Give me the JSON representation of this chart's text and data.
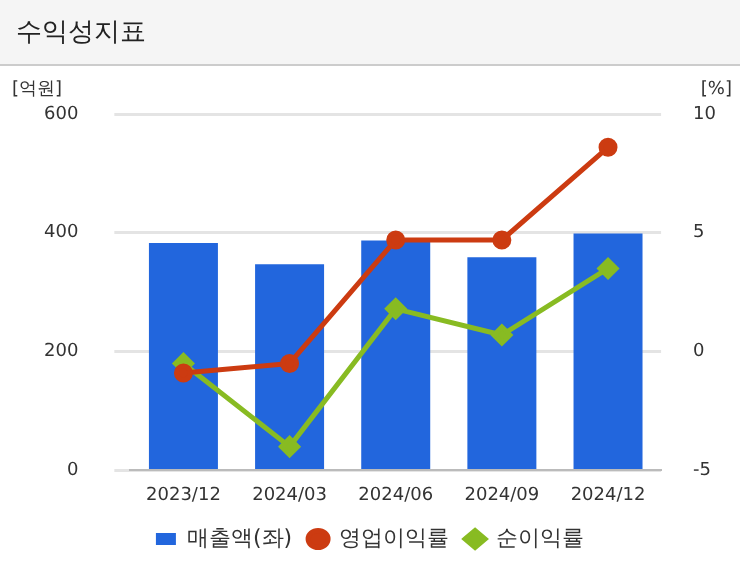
{
  "chart_data": {
    "type": "bar",
    "title": "수익성지표",
    "ylabel": "[억원]",
    "y2label": "[%]",
    "categories": [
      "2023/12",
      "2024/03",
      "2024/06",
      "2024/09",
      "2024/12"
    ],
    "series": [
      {
        "name": "매출액(좌)",
        "color": "#2266dd",
        "values": [
          383,
          347,
          387,
          359,
          399
        ]
      },
      {
        "name": "영업이익률",
        "type": "line",
        "axis": "y2",
        "color": "#cc3b11",
        "marker": "circle",
        "values": [
          -0.9,
          -0.5,
          4.7,
          4.7,
          8.6
        ]
      },
      {
        "name": "순이익률",
        "type": "line",
        "axis": "y2",
        "color": "#88bb22",
        "marker": "diamond",
        "values": [
          -0.5,
          -4.0,
          1.8,
          0.7,
          3.5
        ]
      }
    ],
    "ylim": [
      0,
      600
    ],
    "yticks": [
      0,
      200,
      400,
      600
    ],
    "y2lim": [
      -5,
      10
    ],
    "y2ticks": [
      -5,
      0,
      5,
      10
    ],
    "grid": "y",
    "legend": "bottom"
  }
}
